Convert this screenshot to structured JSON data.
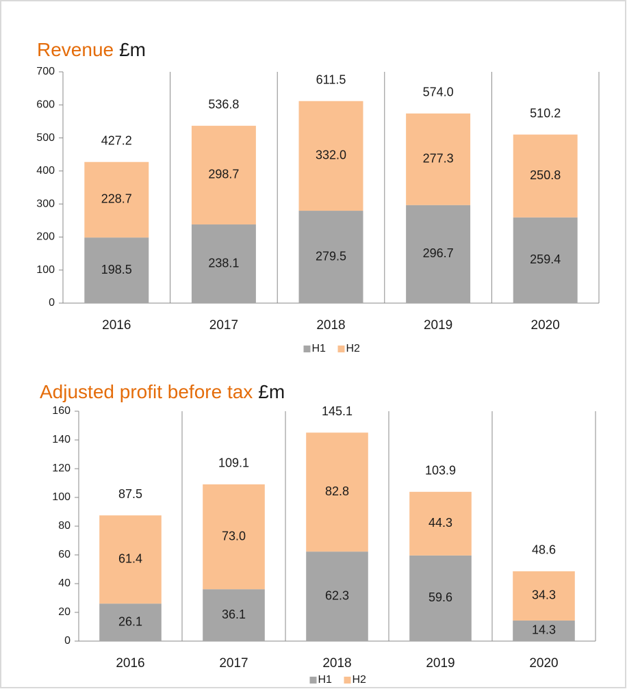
{
  "chart_data": [
    {
      "type": "bar",
      "stacked": true,
      "title": "Revenue",
      "title_unit": "£m",
      "categories": [
        "2016",
        "2017",
        "2018",
        "2019",
        "2020"
      ],
      "series": [
        {
          "name": "H1",
          "color": "#a6a6a6",
          "values": [
            198.5,
            238.1,
            279.5,
            296.7,
            259.4
          ]
        },
        {
          "name": "H2",
          "color": "#fac090",
          "values": [
            228.7,
            298.7,
            332.0,
            277.3,
            250.8
          ],
          "value_labels": [
            "228.7",
            "298.7",
            "332.0",
            "277.3",
            "250.8"
          ]
        }
      ],
      "totals": [
        427.2,
        536.8,
        611.5,
        574.0,
        510.2
      ],
      "total_labels": [
        "427.2",
        "536.8",
        "611.5",
        "574.0",
        "510.2"
      ],
      "ylim": [
        0,
        700
      ],
      "yticks": [
        0,
        100,
        200,
        300,
        400,
        500,
        600,
        700
      ],
      "xgrid": true,
      "legend": "bottom"
    },
    {
      "type": "bar",
      "stacked": true,
      "title": "Adjusted profit before tax",
      "title_unit": "£m",
      "categories": [
        "2016",
        "2017",
        "2018",
        "2019",
        "2020"
      ],
      "series": [
        {
          "name": "H1",
          "color": "#a6a6a6",
          "values": [
            26.1,
            36.1,
            62.3,
            59.6,
            14.3
          ]
        },
        {
          "name": "H2",
          "color": "#fac090",
          "values": [
            61.4,
            73.0,
            82.8,
            44.3,
            34.3
          ],
          "value_labels": [
            "61.4",
            "73.0",
            "82.8",
            "44.3",
            "34.3"
          ]
        }
      ],
      "totals": [
        87.5,
        109.1,
        145.1,
        103.9,
        48.6
      ],
      "total_labels": [
        "87.5",
        "109.1",
        "145.1",
        "103.9",
        "48.6"
      ],
      "ylim": [
        0,
        160
      ],
      "yticks": [
        0,
        20,
        40,
        60,
        80,
        100,
        120,
        140,
        160
      ],
      "xgrid": true,
      "legend": "bottom"
    }
  ]
}
